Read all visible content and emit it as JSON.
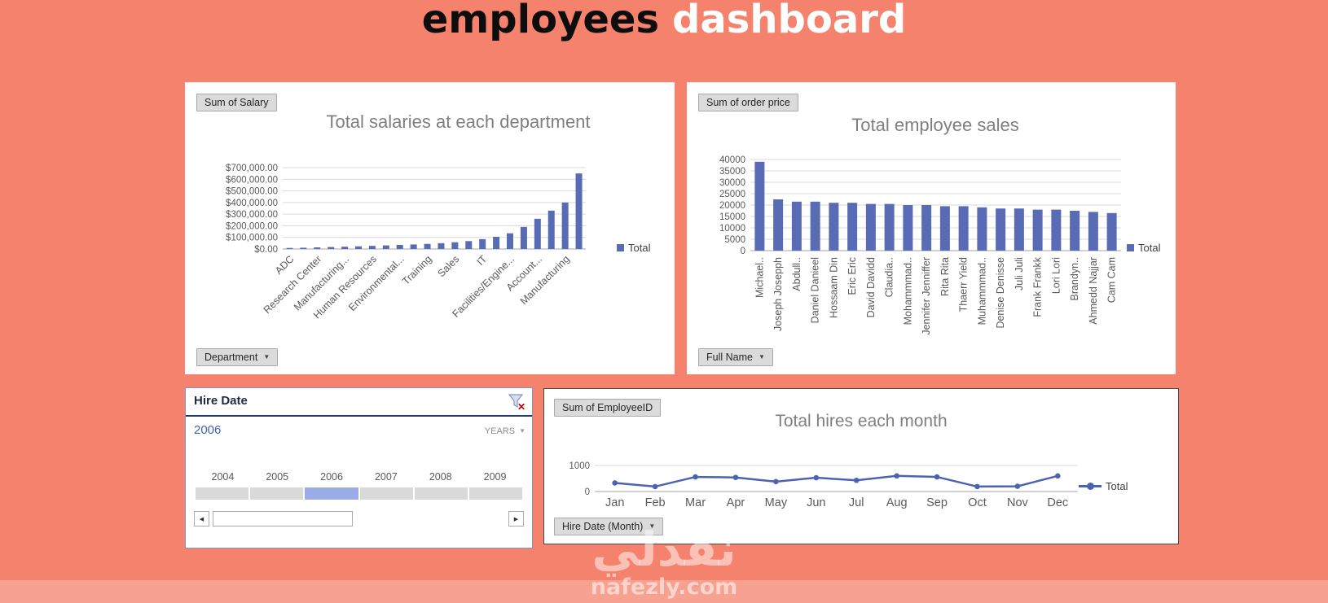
{
  "header": {
    "title_part1": "employees",
    "title_part2": "dashboard"
  },
  "watermark": {
    "brand_arabic": "نفذلي",
    "brand_domain": "nafezly.com"
  },
  "colors": {
    "background": "#F5826D",
    "bar": "#5A6BB5",
    "line": "#4C63B0",
    "grid": "#D9D9D9",
    "axis_text": "#595959",
    "title_text": "#7F7F7F",
    "timeline_selected": "#9AADE8",
    "timeline_track": "#D9D9D9",
    "clear_filter_x": "#C00000"
  },
  "salary_panel": {
    "field_button": "Sum of Salary",
    "axis_button": "Department",
    "legend": "Total"
  },
  "sales_panel": {
    "field_button": "Sum of order price",
    "axis_button": "Full Name",
    "legend": "Total"
  },
  "hires_panel": {
    "field_button": "Sum of EmployeeID",
    "axis_button": "Hire Date  (Month)",
    "legend": "Total"
  },
  "timeline": {
    "title": "Hire Date",
    "selected_label": "2006",
    "period_label": "YEARS",
    "years": [
      "2004",
      "2005",
      "2006",
      "2007",
      "2008",
      "2009"
    ],
    "selected_index": 2
  },
  "chart_data": [
    {
      "id": "salary",
      "type": "bar",
      "title": "Total salaries at each department",
      "legend": "Total",
      "ylim": [
        0,
        700000
      ],
      "yticks": [
        "$0.00",
        "$100,000.00",
        "$200,000.00",
        "$300,000.00",
        "$400,000.00",
        "$500,000.00",
        "$600,000.00",
        "$700,000.00"
      ],
      "categories": [
        "ADC",
        "",
        "Research Center",
        "",
        "Manufacturing...",
        "",
        "Human Resources",
        "",
        "Environmental...",
        "",
        "Training",
        "",
        "Sales",
        "",
        "IT",
        "",
        "Facilities/Engine...",
        "",
        "Account...",
        "",
        "Manufacturing",
        ""
      ],
      "values": [
        9000,
        11000,
        14000,
        17000,
        20000,
        23000,
        27000,
        31000,
        35000,
        39000,
        44000,
        50000,
        58000,
        68000,
        85000,
        105000,
        135000,
        190000,
        260000,
        330000,
        400000,
        650000
      ]
    },
    {
      "id": "sales",
      "type": "bar",
      "title": "Total employee sales",
      "legend": "Total",
      "ylim": [
        0,
        40000
      ],
      "yticks": [
        "0",
        "5000",
        "10000",
        "15000",
        "20000",
        "25000",
        "30000",
        "35000",
        "40000"
      ],
      "categories": [
        "Michael..",
        "Joseph Josepph",
        "Abdull..",
        "Daniel Danieel",
        "Hossaam Din",
        "Eric Eric",
        "David Davidd",
        "Claudia..",
        "Mohammmad..",
        "Jennifer Jenniffer",
        "Rita Rita",
        "Thaerr Yield",
        "Muhammmad..",
        "Denise Denisse",
        "Juli Juli",
        "Frank Frankk",
        "Lori Lori",
        "Brandyn..",
        "Ahmedd Najjar",
        "Cam Cam"
      ],
      "values": [
        39000,
        22500,
        21500,
        21500,
        21000,
        21000,
        20500,
        20500,
        20000,
        20000,
        19500,
        19500,
        19000,
        18500,
        18500,
        18000,
        18000,
        17500,
        17000,
        16500
      ]
    },
    {
      "id": "hires",
      "type": "line",
      "title": "Total hires each month",
      "legend": "Total",
      "ylim": [
        0,
        1000
      ],
      "yticks": [
        "0",
        "1000"
      ],
      "categories": [
        "Jan",
        "Feb",
        "Mar",
        "Apr",
        "May",
        "Jun",
        "Jul",
        "Aug",
        "Sep",
        "Oct",
        "Nov",
        "Dec"
      ],
      "values": [
        330,
        190,
        560,
        540,
        380,
        530,
        430,
        600,
        560,
        190,
        200,
        600
      ]
    }
  ]
}
